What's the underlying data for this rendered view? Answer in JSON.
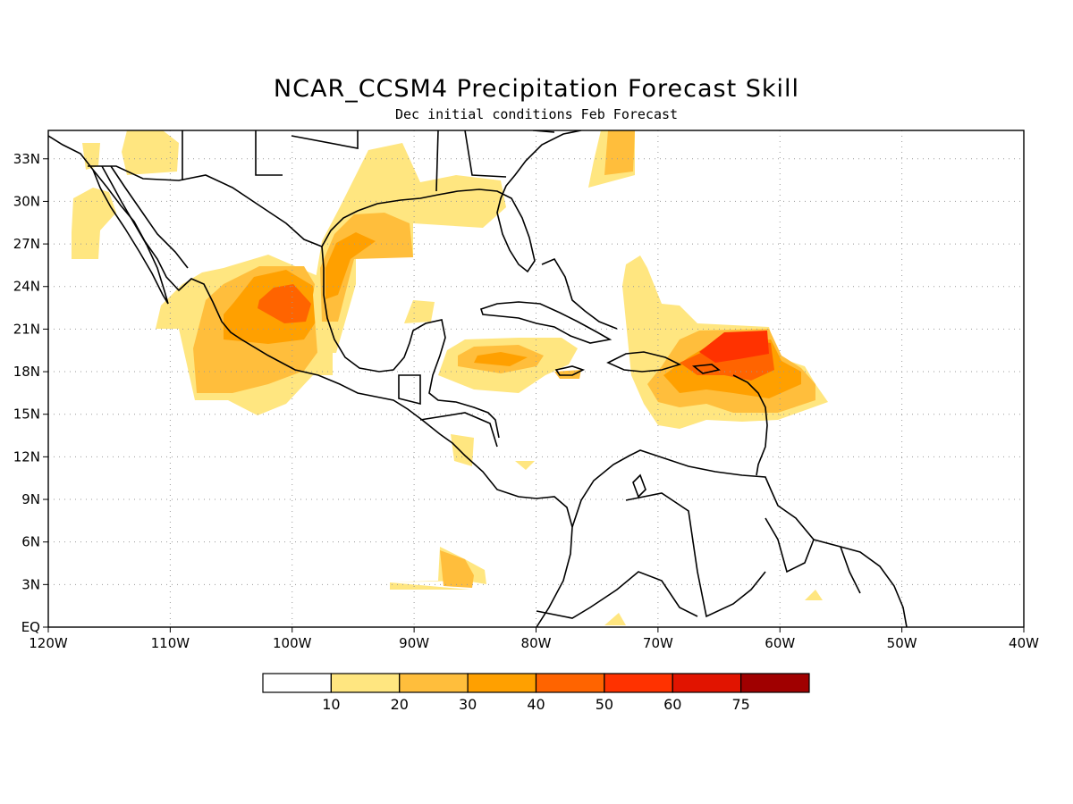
{
  "title": "NCAR_CCSM4 Precipitation Forecast Skill",
  "subtitle": "Dec initial conditions  Feb Forecast",
  "map": {
    "lon_range": [
      -120,
      -40
    ],
    "lat_range": [
      0,
      35
    ],
    "grid": "dotted",
    "lon_ticks": [
      {
        "value": -120,
        "label": "120W"
      },
      {
        "value": -110,
        "label": "110W"
      },
      {
        "value": -100,
        "label": "100W"
      },
      {
        "value": -90,
        "label": "90W"
      },
      {
        "value": -80,
        "label": "80W"
      },
      {
        "value": -70,
        "label": "70W"
      },
      {
        "value": -60,
        "label": "60W"
      },
      {
        "value": -50,
        "label": "50W"
      },
      {
        "value": -40,
        "label": "40W"
      }
    ],
    "lat_ticks": [
      {
        "value": 0,
        "label": "EQ"
      },
      {
        "value": 3,
        "label": "3N"
      },
      {
        "value": 6,
        "label": "6N"
      },
      {
        "value": 9,
        "label": "9N"
      },
      {
        "value": 12,
        "label": "12N"
      },
      {
        "value": 15,
        "label": "15N"
      },
      {
        "value": 18,
        "label": "18N"
      },
      {
        "value": 21,
        "label": "21N"
      },
      {
        "value": 24,
        "label": "24N"
      },
      {
        "value": 27,
        "label": "27N"
      },
      {
        "value": 30,
        "label": "30N"
      },
      {
        "value": 33,
        "label": "33N"
      }
    ]
  },
  "colorbar": {
    "levels": [
      "10",
      "20",
      "30",
      "40",
      "50",
      "60",
      "75"
    ],
    "colors": [
      "#ffffff",
      "#ffe680",
      "#ffbe3c",
      "#ffa000",
      "#ff6400",
      "#ff3200",
      "#e11400",
      "#a00000"
    ]
  },
  "colors": {
    "l1": "#ffe680",
    "l2": "#ffbe3c",
    "l3": "#ffa000",
    "l4": "#ff6400",
    "l5": "#ff3200",
    "coast": "#000000"
  }
}
